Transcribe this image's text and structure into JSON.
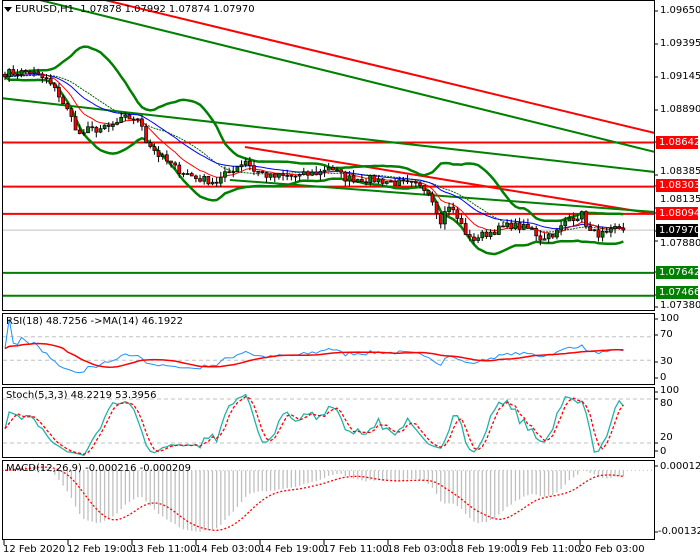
{
  "header": {
    "symbol": "EURUSD,H1",
    "open": "1.07878",
    "high": "1.07992",
    "low": "1.07874",
    "close": "1.07970"
  },
  "price_axis": {
    "labels": [
      "1.09650",
      "1.09395",
      "1.09145",
      "1.08890",
      "1.08385",
      "1.08135",
      "1.07880",
      "1.07380"
    ]
  },
  "levels": [
    {
      "price": "1.08642",
      "color": "#ff0000"
    },
    {
      "price": "1.08303",
      "color": "#ff0000"
    },
    {
      "price": "1.08094",
      "color": "#ff0000"
    },
    {
      "price": "1.07642",
      "color": "#008000"
    },
    {
      "price": "1.07466",
      "color": "#008000"
    }
  ],
  "current_price": {
    "price": "1.07970",
    "color": "#000000"
  },
  "rsi": {
    "label": "RSI(18) 48.7256  ->MA(14) 46.1922",
    "axis": [
      "100",
      "70",
      "30",
      "0"
    ]
  },
  "stoch": {
    "label": "Stoch(5,3,3) 48.2219 53.3956",
    "axis": [
      "100",
      "80",
      "20",
      "0"
    ]
  },
  "macd": {
    "label": "MACD(12,26,9) -0.000216 -0.000209",
    "axis": [
      "0.000123",
      "-0.001322"
    ]
  },
  "time_axis": [
    "12 Feb 2020",
    "12 Feb 19:00",
    "13 Feb 11:00",
    "14 Feb 03:00",
    "14 Feb 19:00",
    "17 Feb 11:00",
    "18 Feb 03:00",
    "18 Feb 19:00",
    "19 Feb 11:00",
    "20 Feb 03:00"
  ],
  "chart_data": {
    "type": "candlestick",
    "symbol": "EURUSD",
    "timeframe": "H1",
    "ylim": [
      1.0738,
      1.0965
    ],
    "bars": 150,
    "close_path": [
      [
        0,
        1.09175
      ],
      [
        6,
        1.09182
      ],
      [
        10,
        1.09121
      ],
      [
        13,
        1.09006
      ],
      [
        16,
        1.08829
      ],
      [
        18,
        1.08699
      ],
      [
        20,
        1.08737
      ],
      [
        25,
        1.08753
      ],
      [
        29,
        1.08829
      ],
      [
        31,
        1.08829
      ],
      [
        33,
        1.08776
      ],
      [
        34,
        1.08661
      ],
      [
        37,
        1.08546
      ],
      [
        41,
        1.08446
      ],
      [
        46,
        1.08369
      ],
      [
        51,
        1.08339
      ],
      [
        53,
        1.08392
      ],
      [
        58,
        1.08507
      ],
      [
        60,
        1.08431
      ],
      [
        64,
        1.08377
      ],
      [
        71,
        1.08385
      ],
      [
        76,
        1.08415
      ],
      [
        78,
        1.08461
      ],
      [
        82,
        1.08369
      ],
      [
        90,
        1.08354
      ],
      [
        98,
        1.08316
      ],
      [
        102,
        1.08277
      ],
      [
        105,
        1.08047
      ],
      [
        107,
        1.08162
      ],
      [
        110,
        1.08009
      ],
      [
        112,
        1.07894
      ],
      [
        117,
        1.07955
      ],
      [
        122,
        1.08009
      ],
      [
        127,
        1.07971
      ],
      [
        129,
        1.07909
      ],
      [
        133,
        1.07955
      ],
      [
        136,
        1.08063
      ],
      [
        139,
        1.08086
      ],
      [
        141,
        1.07955
      ],
      [
        145,
        1.07932
      ],
      [
        147,
        1.07971
      ],
      [
        149,
        1.0797
      ]
    ],
    "trendlines": [
      {
        "color": "#ff0000",
        "from": [
          24.1,
          1.09734
        ],
        "to": [
          156.6,
          1.08714
        ]
      },
      {
        "color": "#008000",
        "from": [
          8.4,
          1.09734
        ],
        "to": [
          156.6,
          1.08569
        ]
      },
      {
        "color": "#008000",
        "from": [
          -1.2,
          1.08983
        ],
        "to": [
          156.6,
          1.08415
        ]
      },
      {
        "color": "#ff0000",
        "from": [
          57.8,
          1.08607
        ],
        "to": [
          156.6,
          1.08093
        ]
      },
      {
        "color": "#008000",
        "from": [
          54.2,
          1.08354
        ],
        "to": [
          156.6,
          1.08109
        ]
      }
    ],
    "indicators": {
      "rsi": {
        "period": 18,
        "value": 48.7256,
        "ma_period": 14,
        "ma_value": 46.1922,
        "levels": [
          70,
          30
        ]
      },
      "stoch": {
        "k": 5,
        "d": 3,
        "slowing": 3,
        "main": 48.2219,
        "signal": 53.3956,
        "levels": [
          80,
          20
        ]
      },
      "macd": {
        "fast": 12,
        "slow": 26,
        "signal": 9,
        "main": -0.000216,
        "signal_value": -0.000209,
        "ylim": [
          -0.001322,
          0.000123
        ]
      }
    }
  }
}
